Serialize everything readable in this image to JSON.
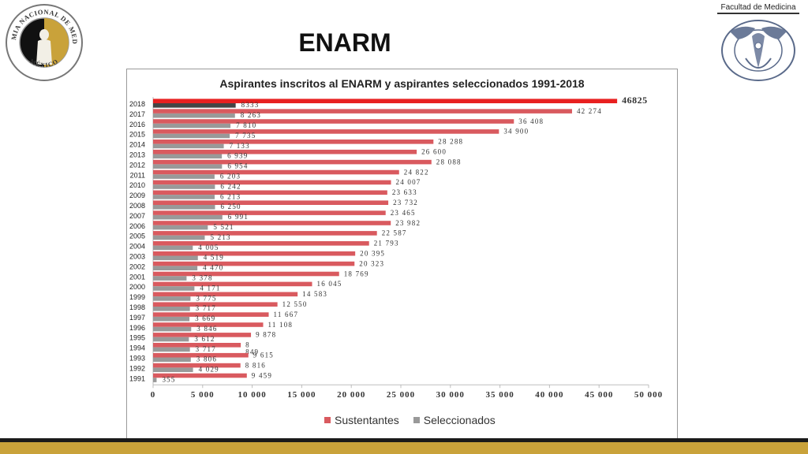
{
  "slide": {
    "title": "ENARM",
    "left_logo_text_top": "ACADEMIA NACIONAL DE MEDICINA",
    "left_logo_text_bottom": "MÉXICO",
    "right_logo_label": "Facultad de Medicina"
  },
  "colors": {
    "sustentantes": "#d95a5f",
    "seleccionados": "#999999",
    "highlight_sustentantes": "#e82020",
    "highlight_seleccionados": "#444444",
    "gold": "#c9a23a"
  },
  "chart_data": {
    "type": "bar",
    "orientation": "horizontal",
    "title": "Aspirantes inscritos al ENARM y aspirantes seleccionados 1991-2018",
    "categories": [
      "2018",
      "2017",
      "2016",
      "2015",
      "2014",
      "2013",
      "2012",
      "2011",
      "2010",
      "2009",
      "2008",
      "2007",
      "2006",
      "2005",
      "2004",
      "2003",
      "2002",
      "2001",
      "2000",
      "1999",
      "1998",
      "1997",
      "1996",
      "1995",
      "1994",
      "1993",
      "1992",
      "1991"
    ],
    "series": [
      {
        "name": "Sustentantes",
        "values": [
          46825,
          42274,
          36408,
          34900,
          28288,
          26600,
          28088,
          24822,
          24007,
          23633,
          23732,
          23465,
          23982,
          22587,
          21793,
          20395,
          20323,
          18769,
          16045,
          14583,
          12550,
          11667,
          11108,
          9878,
          8849,
          9615,
          8816,
          9459
        ]
      },
      {
        "name": "Seleccionados",
        "values": [
          8333,
          8263,
          7810,
          7735,
          7133,
          6939,
          6954,
          6203,
          6242,
          6213,
          6250,
          6991,
          5521,
          5213,
          4005,
          4519,
          4470,
          3378,
          4171,
          3775,
          3717,
          3669,
          3846,
          3612,
          3717,
          3806,
          4029,
          355
        ]
      }
    ],
    "data_labels": {
      "sustentantes": [
        "46825",
        "42 274",
        "36 408",
        "34 900",
        "28 288",
        "26 600",
        "28 088",
        "24 822",
        "24 007",
        "23 633",
        "23 732",
        "23 465",
        "23 982",
        "22 587",
        "21 793",
        "20 395",
        "20 323",
        "18 769",
        "16 045",
        "14 583",
        "12 550",
        "11 667",
        "11 108",
        "9 878",
        "8\n849",
        "9 615",
        "8 816",
        "9 459"
      ],
      "seleccionados": [
        "8333",
        "8 263",
        "7 810",
        "7 735",
        "7 133",
        "6 939",
        "6 954",
        "6 203",
        "6 242",
        "6 213",
        "6 250",
        "6 991",
        "5 521",
        "5 213",
        "4 005",
        "4 519",
        "4 470",
        "3 378",
        "4 171",
        "3 775",
        "3 717",
        "3 669",
        "3 846",
        "3 612",
        "3 717",
        "3 806",
        "4 029",
        "355"
      ]
    },
    "xlim": [
      0,
      50000
    ],
    "xticks": [
      0,
      5000,
      10000,
      15000,
      20000,
      25000,
      30000,
      35000,
      40000,
      45000,
      50000
    ],
    "xtick_labels": [
      "0",
      "5 000",
      "10 000",
      "15 000",
      "20 000",
      "25 000",
      "30 000",
      "35 000",
      "40 000",
      "45 000",
      "50 000"
    ],
    "grid": false,
    "legend": {
      "position": "bottom",
      "entries": [
        "Sustentantes",
        "Seleccionados"
      ]
    }
  }
}
